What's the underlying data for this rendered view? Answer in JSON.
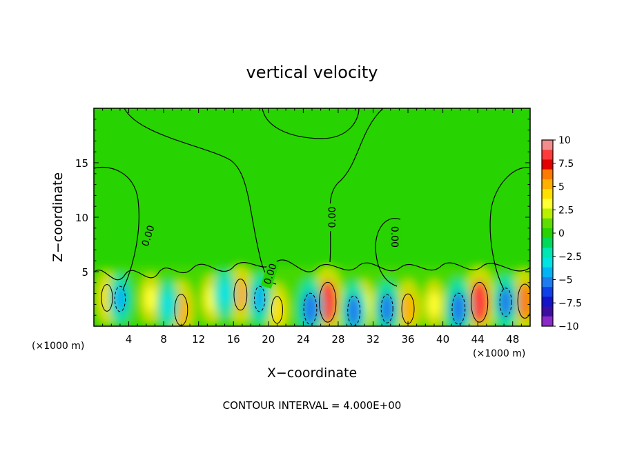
{
  "chart_data": {
    "type": "heatmap",
    "title": "vertical velocity",
    "xlabel": "X−coordinate",
    "ylabel": "Z−coordinate",
    "x_unit_left": "(×1000 m)",
    "x_unit_right": "(×1000 m)",
    "xlim": [
      0,
      50
    ],
    "ylim": [
      0,
      20
    ],
    "x_ticks": [
      4,
      8,
      12,
      16,
      20,
      24,
      28,
      32,
      36,
      40,
      44,
      48
    ],
    "y_ticks": [
      5,
      10,
      15
    ],
    "colorbar": {
      "min": -10,
      "max": 10,
      "ticks": [
        10,
        7.5,
        5,
        2.5,
        0,
        -2.5,
        -5,
        -7.5,
        -10
      ],
      "tick_labels": [
        "10",
        "7.5",
        "5",
        "2.5",
        "0",
        "−2.5",
        "−5",
        "−7.5",
        "−10"
      ],
      "colors": [
        "#f28d8d",
        "#ff3b3b",
        "#e20000",
        "#ff7b00",
        "#ffb000",
        "#ffe100",
        "#ffff33",
        "#b8f000",
        "#5fdc00",
        "#27d300",
        "#00d95a",
        "#00e6b4",
        "#00e3e3",
        "#00b4f5",
        "#1f7cf0",
        "#1040e8",
        "#1414c8",
        "#3c0fa0",
        "#8a2bc8"
      ]
    },
    "contour_labels": [
      {
        "text": "0.00",
        "x": 6.2,
        "z": 8.3,
        "rot": -72
      },
      {
        "text": "0.00",
        "x": 20.2,
        "z": 4.8,
        "rot": -72
      },
      {
        "text": "0.00",
        "x": 27.3,
        "z": 10.0,
        "rot": -90
      },
      {
        "text": "0.00",
        "x": 34.5,
        "z": 8.2,
        "rot": 90
      }
    ],
    "updraft_cells": [
      {
        "x": 1.5,
        "z": 2.6,
        "w": 4.5
      },
      {
        "x": 6.5,
        "z": 2.5,
        "w": 3.5
      },
      {
        "x": 10.0,
        "z": 1.5,
        "w": 6.0
      },
      {
        "x": 13.5,
        "z": 2.5,
        "w": 3.5
      },
      {
        "x": 16.8,
        "z": 2.9,
        "w": 6.0
      },
      {
        "x": 21.0,
        "z": 1.5,
        "w": 4.5
      },
      {
        "x": 26.8,
        "z": 2.2,
        "w": 9.0
      },
      {
        "x": 31.0,
        "z": 2.0,
        "w": 3.5
      },
      {
        "x": 36.0,
        "z": 1.6,
        "w": 5.5
      },
      {
        "x": 39.0,
        "z": 2.0,
        "w": 3.5
      },
      {
        "x": 44.2,
        "z": 2.2,
        "w": 9.0
      },
      {
        "x": 49.4,
        "z": 2.3,
        "w": 7.0
      }
    ],
    "downdraft_cells": [
      {
        "x": 3.0,
        "z": 2.5,
        "w": -4.0
      },
      {
        "x": 8.5,
        "z": 2.0,
        "w": -3.0
      },
      {
        "x": 15.0,
        "z": 3.0,
        "w": -3.5
      },
      {
        "x": 19.0,
        "z": 2.5,
        "w": -4.0
      },
      {
        "x": 24.8,
        "z": 1.6,
        "w": -6.0
      },
      {
        "x": 29.8,
        "z": 1.4,
        "w": -5.5
      },
      {
        "x": 33.6,
        "z": 1.6,
        "w": -5.0
      },
      {
        "x": 41.8,
        "z": 1.6,
        "w": -6.0
      },
      {
        "x": 47.2,
        "z": 2.2,
        "w": -5.0
      }
    ],
    "annotation": "CONTOUR INTERVAL = 4.000E+00"
  }
}
